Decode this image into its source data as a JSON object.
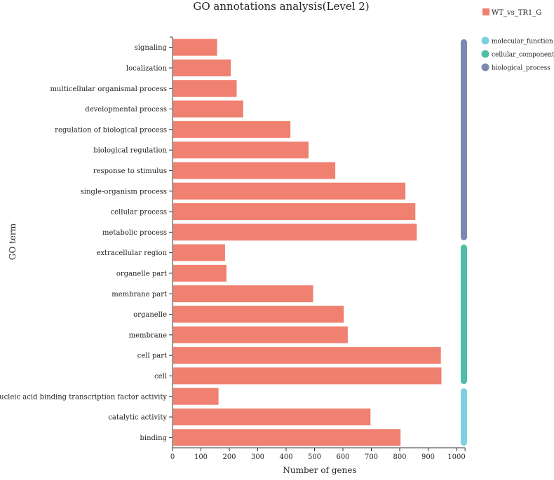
{
  "chart_data": {
    "type": "bar",
    "orientation": "horizontal",
    "title": "GO annotations analysis(Level 2)",
    "xlabel": "Number of genes",
    "ylabel": "GO term",
    "xlim": [
      0,
      1030
    ],
    "xticks": [
      0,
      100,
      200,
      300,
      400,
      500,
      600,
      700,
      800,
      900,
      1000
    ],
    "bar_color": "#f08070",
    "series": [
      {
        "name": "WT_vs_TR1_G",
        "color": "#f08070"
      }
    ],
    "categories": [
      {
        "label": "signaling",
        "value": 157,
        "group": "biological_process"
      },
      {
        "label": "localization",
        "value": 205,
        "group": "biological_process"
      },
      {
        "label": "multicellular organismal process",
        "value": 226,
        "group": "biological_process"
      },
      {
        "label": "developmental process",
        "value": 249,
        "group": "biological_process"
      },
      {
        "label": "regulation of biological process",
        "value": 415,
        "group": "biological_process"
      },
      {
        "label": "biological regulation",
        "value": 479,
        "group": "biological_process"
      },
      {
        "label": "response to stimulus",
        "value": 573,
        "group": "biological_process"
      },
      {
        "label": "single-organism process",
        "value": 820,
        "group": "biological_process"
      },
      {
        "label": "cellular process",
        "value": 855,
        "group": "biological_process"
      },
      {
        "label": "metabolic process",
        "value": 860,
        "group": "biological_process"
      },
      {
        "label": "extracellular region",
        "value": 185,
        "group": "cellular_component"
      },
      {
        "label": "organelle part",
        "value": 190,
        "group": "cellular_component"
      },
      {
        "label": "membrane part",
        "value": 495,
        "group": "cellular_component"
      },
      {
        "label": "organelle",
        "value": 603,
        "group": "cellular_component"
      },
      {
        "label": "membrane",
        "value": 617,
        "group": "cellular_component"
      },
      {
        "label": "cell part",
        "value": 945,
        "group": "cellular_component"
      },
      {
        "label": "cell",
        "value": 947,
        "group": "cellular_component"
      },
      {
        "label": "nucleic acid binding transcription factor activity",
        "value": 162,
        "group": "molecular_function"
      },
      {
        "label": "catalytic activity",
        "value": 697,
        "group": "molecular_function"
      },
      {
        "label": "binding",
        "value": 803,
        "group": "molecular_function"
      }
    ],
    "groups": [
      {
        "name": "molecular_function",
        "color": "#7ecfe0"
      },
      {
        "name": "cellular_component",
        "color": "#4dbfa6"
      },
      {
        "name": "biological_process",
        "color": "#7a8bae"
      }
    ],
    "legend_position": "top-right"
  }
}
